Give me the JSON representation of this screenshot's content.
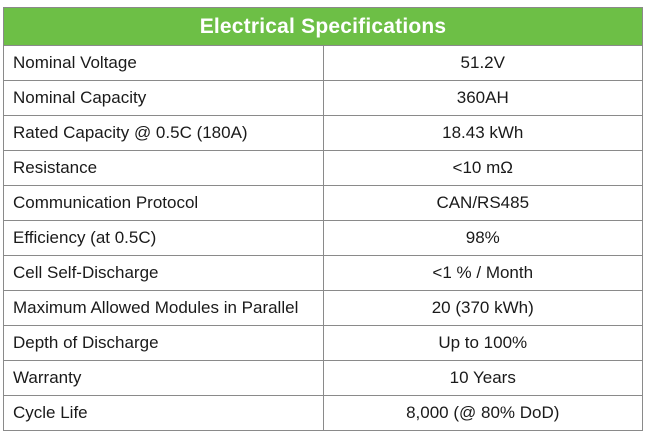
{
  "table": {
    "title": "Electrical Specifications",
    "rows": [
      {
        "label": "Nominal Voltage",
        "value": "51.2V"
      },
      {
        "label": "Nominal Capacity",
        "value": "360AH"
      },
      {
        "label": "Rated Capacity @ 0.5C (180A)",
        "value": "18.43 kWh"
      },
      {
        "label": "Resistance",
        "value": "<10 mΩ"
      },
      {
        "label": "Communication Protocol",
        "value": "CAN/RS485"
      },
      {
        "label": "Efficiency (at 0.5C)",
        "value": "98%"
      },
      {
        "label": "Cell Self-Discharge",
        "value": "<1 % / Month"
      },
      {
        "label": "Maximum Allowed Modules in Parallel",
        "value": "20 (370 kWh)"
      },
      {
        "label": "Depth of Discharge",
        "value": "Up to 100%"
      },
      {
        "label": "Warranty",
        "value": "10 Years"
      },
      {
        "label": "Cycle Life",
        "value": "8,000 (@ 80% DoD)"
      }
    ]
  },
  "colors": {
    "header_bg": "#6dbf46",
    "header_text": "#ffffff",
    "border": "#8a8a8a"
  }
}
